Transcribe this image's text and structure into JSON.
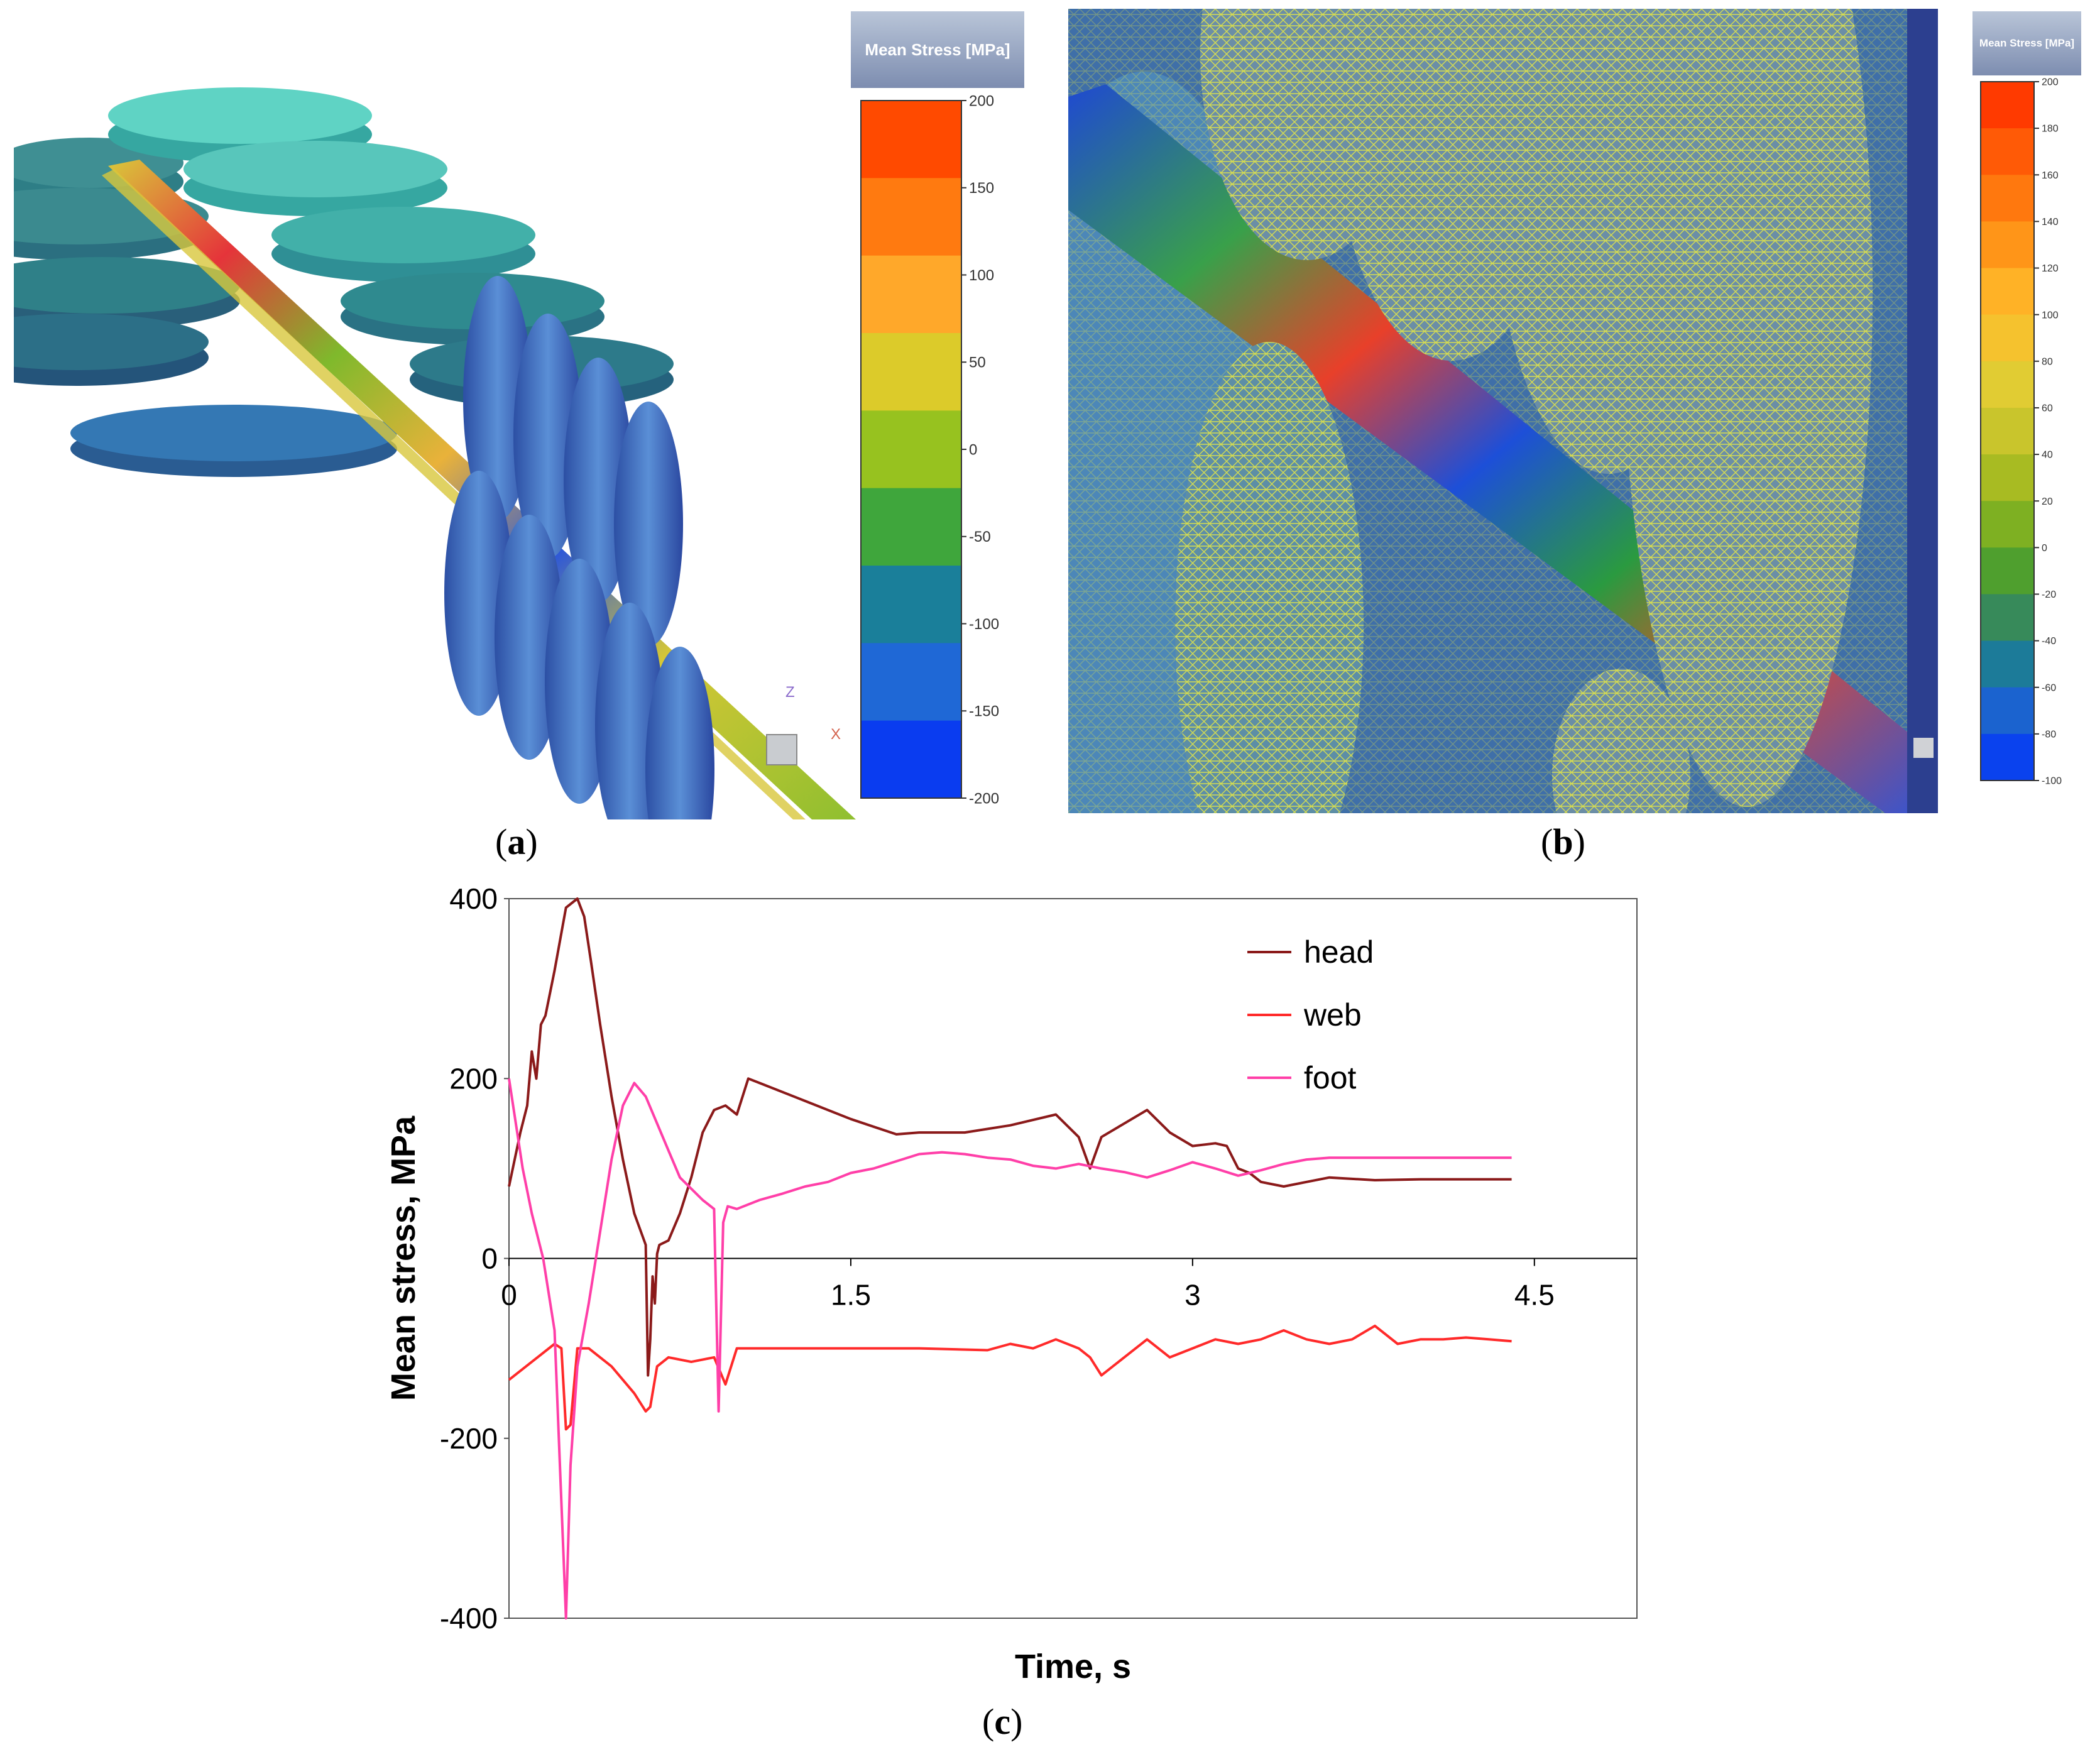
{
  "panel_a": {
    "label": "a",
    "legend_title": "Mean Stress  [MPa]",
    "ticks": [
      "200",
      "150",
      "100",
      "50",
      "0",
      "-50",
      "-100",
      "-150",
      "-200"
    ],
    "colors": [
      "#ff4a00",
      "#ff7a10",
      "#ffa82a",
      "#dccb2a",
      "#97c21f",
      "#3fa63c",
      "#1a7f9a",
      "#1f68d6",
      "#0a3cf0"
    ],
    "axis_z": "Z",
    "axis_x": "X"
  },
  "panel_b": {
    "label": "b",
    "legend_title": "Mean Stress  [MPa]",
    "ticks": [
      "200",
      "180",
      "160",
      "140",
      "120",
      "100",
      "80",
      "60",
      "40",
      "20",
      "0",
      "-20",
      "-40",
      "-60",
      "-80",
      "-100"
    ],
    "colors": [
      "#ff3a00",
      "#ff5a06",
      "#ff780e",
      "#ff9518",
      "#ffb226",
      "#f5c22e",
      "#e1cc33",
      "#c9c52c",
      "#a8bb22",
      "#7eb022",
      "#4f9f2e",
      "#378a5a",
      "#1c7b99",
      "#1b63cf",
      "#0a42ee"
    ]
  },
  "panel_c": {
    "label": "c",
    "chart_data": {
      "type": "line",
      "title": "",
      "xlabel": "Time, s",
      "ylabel": "Mean stress, MPa",
      "xlim": [
        0,
        4.95
      ],
      "ylim": [
        -400,
        400
      ],
      "xticks": [
        "0",
        "1.5",
        "3",
        "4.5"
      ],
      "yticks": [
        "400",
        "200",
        "0",
        "-200",
        "-400"
      ],
      "legend_position": "top-right",
      "series": [
        {
          "name": "head",
          "color": "#8b1a1a",
          "x": [
            0,
            0.05,
            0.08,
            0.1,
            0.12,
            0.14,
            0.16,
            0.2,
            0.25,
            0.3,
            0.33,
            0.36,
            0.4,
            0.45,
            0.5,
            0.55,
            0.6,
            0.61,
            0.62,
            0.63,
            0.64,
            0.65,
            0.66,
            0.7,
            0.75,
            0.8,
            0.85,
            0.9,
            0.95,
            1.0,
            1.05,
            1.1,
            1.3,
            1.5,
            1.7,
            1.8,
            2.0,
            2.2,
            2.4,
            2.5,
            2.55,
            2.6,
            2.7,
            2.8,
            2.9,
            3.0,
            3.1,
            3.15,
            3.2,
            3.25,
            3.3,
            3.4,
            3.5,
            3.6,
            3.8,
            4.0,
            4.2,
            4.4
          ],
          "values": [
            80,
            140,
            170,
            230,
            200,
            260,
            270,
            320,
            390,
            400,
            380,
            330,
            260,
            180,
            110,
            50,
            15,
            -130,
            -90,
            -20,
            -50,
            5,
            15,
            20,
            50,
            90,
            140,
            165,
            170,
            160,
            200,
            195,
            175,
            155,
            138,
            140,
            140,
            148,
            160,
            135,
            100,
            135,
            150,
            165,
            140,
            125,
            128,
            125,
            100,
            95,
            85,
            80,
            85,
            90,
            87,
            88,
            88,
            88
          ]
        },
        {
          "name": "web",
          "color": "#ff2a2a",
          "x": [
            0,
            0.1,
            0.2,
            0.23,
            0.25,
            0.27,
            0.3,
            0.35,
            0.45,
            0.55,
            0.6,
            0.62,
            0.65,
            0.7,
            0.8,
            0.9,
            0.95,
            1.0,
            1.2,
            1.5,
            1.8,
            2.1,
            2.2,
            2.3,
            2.4,
            2.5,
            2.55,
            2.6,
            2.7,
            2.8,
            2.9,
            3.0,
            3.1,
            3.2,
            3.3,
            3.4,
            3.5,
            3.6,
            3.7,
            3.8,
            3.9,
            4.0,
            4.1,
            4.2,
            4.3,
            4.4
          ],
          "values": [
            -135,
            -115,
            -95,
            -100,
            -190,
            -185,
            -100,
            -100,
            -120,
            -150,
            -170,
            -165,
            -120,
            -110,
            -115,
            -110,
            -140,
            -100,
            -100,
            -100,
            -100,
            -102,
            -95,
            -100,
            -90,
            -100,
            -110,
            -130,
            -110,
            -90,
            -110,
            -100,
            -90,
            -95,
            -90,
            -80,
            -90,
            -95,
            -90,
            -75,
            -95,
            -90,
            -90,
            -88,
            -90,
            -92
          ]
        },
        {
          "name": "foot",
          "color": "#ff3fa8",
          "x": [
            0,
            0.03,
            0.06,
            0.1,
            0.15,
            0.2,
            0.25,
            0.27,
            0.3,
            0.35,
            0.4,
            0.45,
            0.5,
            0.55,
            0.6,
            0.65,
            0.7,
            0.75,
            0.85,
            0.9,
            0.92,
            0.94,
            0.96,
            1.0,
            1.1,
            1.2,
            1.3,
            1.4,
            1.5,
            1.6,
            1.7,
            1.8,
            1.9,
            2.0,
            2.1,
            2.2,
            2.3,
            2.4,
            2.5,
            2.6,
            2.7,
            2.8,
            2.9,
            3.0,
            3.1,
            3.2,
            3.3,
            3.4,
            3.5,
            3.6,
            3.8,
            4.0,
            4.2,
            4.4
          ],
          "values": [
            200,
            150,
            100,
            50,
            0,
            -80,
            -400,
            -230,
            -120,
            -50,
            30,
            110,
            170,
            195,
            180,
            150,
            120,
            90,
            65,
            55,
            -170,
            40,
            58,
            55,
            65,
            72,
            80,
            85,
            95,
            100,
            108,
            116,
            118,
            116,
            112,
            110,
            103,
            100,
            105,
            100,
            96,
            90,
            98,
            107,
            100,
            92,
            98,
            105,
            110,
            112,
            112,
            112,
            112,
            112
          ]
        }
      ]
    }
  }
}
